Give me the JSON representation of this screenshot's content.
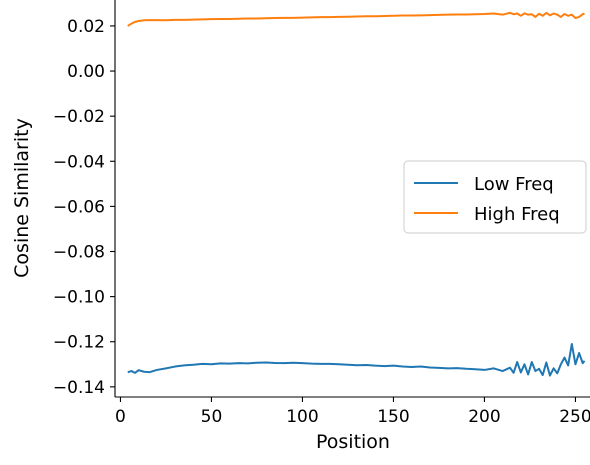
{
  "chart_data": {
    "type": "line",
    "xlabel": "Position",
    "ylabel": "Cosine Similarity",
    "xlim": [
      -3,
      258
    ],
    "ylim": [
      -0.1445,
      0.0315
    ],
    "x_ticks": [
      0,
      50,
      100,
      150,
      200,
      250
    ],
    "x_tick_labels": [
      "0",
      "50",
      "100",
      "150",
      "200",
      "250"
    ],
    "y_ticks": [
      0.02,
      0.0,
      -0.02,
      -0.04,
      -0.06,
      -0.08,
      -0.1,
      -0.12,
      -0.14
    ],
    "y_tick_labels": [
      "0.02",
      "0.00",
      "−0.02",
      "−0.04",
      "−0.06",
      "−0.08",
      "−0.10",
      "−0.12",
      "−0.14"
    ],
    "grid": false,
    "legend_position": "center-right",
    "series": [
      {
        "name": "Low Freq",
        "color": "#1f77b4",
        "points": [
          [
            4,
            -0.1335
          ],
          [
            6,
            -0.133
          ],
          [
            8,
            -0.1338
          ],
          [
            10,
            -0.1326
          ],
          [
            13,
            -0.1333
          ],
          [
            16,
            -0.1335
          ],
          [
            20,
            -0.1325
          ],
          [
            25,
            -0.1318
          ],
          [
            30,
            -0.131
          ],
          [
            35,
            -0.1305
          ],
          [
            40,
            -0.1302
          ],
          [
            45,
            -0.1298
          ],
          [
            50,
            -0.13
          ],
          [
            55,
            -0.1296
          ],
          [
            60,
            -0.1297
          ],
          [
            65,
            -0.1295
          ],
          [
            70,
            -0.1296
          ],
          [
            75,
            -0.1293
          ],
          [
            80,
            -0.1292
          ],
          [
            85,
            -0.1294
          ],
          [
            90,
            -0.1295
          ],
          [
            95,
            -0.1293
          ],
          [
            100,
            -0.1295
          ],
          [
            105,
            -0.1297
          ],
          [
            110,
            -0.1298
          ],
          [
            115,
            -0.1298
          ],
          [
            120,
            -0.13
          ],
          [
            125,
            -0.1302
          ],
          [
            130,
            -0.1304
          ],
          [
            135,
            -0.1303
          ],
          [
            140,
            -0.1306
          ],
          [
            145,
            -0.1308
          ],
          [
            150,
            -0.1306
          ],
          [
            155,
            -0.131
          ],
          [
            160,
            -0.1312
          ],
          [
            165,
            -0.131
          ],
          [
            170,
            -0.1314
          ],
          [
            175,
            -0.1316
          ],
          [
            180,
            -0.1318
          ],
          [
            185,
            -0.1317
          ],
          [
            190,
            -0.132
          ],
          [
            195,
            -0.1322
          ],
          [
            200,
            -0.1325
          ],
          [
            205,
            -0.1318
          ],
          [
            210,
            -0.133
          ],
          [
            214,
            -0.1315
          ],
          [
            216,
            -0.1338
          ],
          [
            218,
            -0.129
          ],
          [
            220,
            -0.1336
          ],
          [
            222,
            -0.13
          ],
          [
            224,
            -0.1345
          ],
          [
            226,
            -0.129
          ],
          [
            228,
            -0.133
          ],
          [
            230,
            -0.132
          ],
          [
            232,
            -0.1348
          ],
          [
            234,
            -0.1292
          ],
          [
            236,
            -0.135
          ],
          [
            238,
            -0.1318
          ],
          [
            240,
            -0.134
          ],
          [
            242,
            -0.13
          ],
          [
            244,
            -0.127
          ],
          [
            246,
            -0.1305
          ],
          [
            248,
            -0.121
          ],
          [
            250,
            -0.13
          ],
          [
            252,
            -0.125
          ],
          [
            254,
            -0.1295
          ],
          [
            255,
            -0.1285
          ]
        ]
      },
      {
        "name": "High Freq",
        "color": "#ff7f0e",
        "points": [
          [
            4,
            0.02
          ],
          [
            6,
            0.021
          ],
          [
            8,
            0.0218
          ],
          [
            10,
            0.0222
          ],
          [
            13,
            0.0225
          ],
          [
            16,
            0.0226
          ],
          [
            20,
            0.0226
          ],
          [
            25,
            0.0225
          ],
          [
            30,
            0.0227
          ],
          [
            35,
            0.0227
          ],
          [
            40,
            0.0228
          ],
          [
            45,
            0.0229
          ],
          [
            50,
            0.023
          ],
          [
            55,
            0.0231
          ],
          [
            60,
            0.0231
          ],
          [
            65,
            0.0232
          ],
          [
            70,
            0.0233
          ],
          [
            75,
            0.0233
          ],
          [
            80,
            0.0234
          ],
          [
            85,
            0.0235
          ],
          [
            90,
            0.0236
          ],
          [
            95,
            0.0236
          ],
          [
            100,
            0.0237
          ],
          [
            105,
            0.0238
          ],
          [
            110,
            0.0239
          ],
          [
            115,
            0.0239
          ],
          [
            120,
            0.024
          ],
          [
            125,
            0.0241
          ],
          [
            130,
            0.0242
          ],
          [
            135,
            0.0243
          ],
          [
            140,
            0.0243
          ],
          [
            145,
            0.0244
          ],
          [
            150,
            0.0245
          ],
          [
            155,
            0.0246
          ],
          [
            160,
            0.0246
          ],
          [
            165,
            0.0247
          ],
          [
            170,
            0.0248
          ],
          [
            175,
            0.0249
          ],
          [
            180,
            0.025
          ],
          [
            185,
            0.0251
          ],
          [
            190,
            0.0251
          ],
          [
            195,
            0.0252
          ],
          [
            200,
            0.0253
          ],
          [
            205,
            0.0255
          ],
          [
            210,
            0.025
          ],
          [
            214,
            0.0258
          ],
          [
            216,
            0.0252
          ],
          [
            218,
            0.0255
          ],
          [
            220,
            0.0245
          ],
          [
            222,
            0.0256
          ],
          [
            224,
            0.025
          ],
          [
            226,
            0.0252
          ],
          [
            228,
            0.024
          ],
          [
            230,
            0.0254
          ],
          [
            232,
            0.0245
          ],
          [
            234,
            0.0258
          ],
          [
            236,
            0.0247
          ],
          [
            238,
            0.0255
          ],
          [
            240,
            0.025
          ],
          [
            242,
            0.024
          ],
          [
            244,
            0.0253
          ],
          [
            246,
            0.0245
          ],
          [
            248,
            0.025
          ],
          [
            250,
            0.0235
          ],
          [
            252,
            0.024
          ],
          [
            254,
            0.0252
          ],
          [
            255,
            0.0255
          ]
        ]
      }
    ]
  }
}
